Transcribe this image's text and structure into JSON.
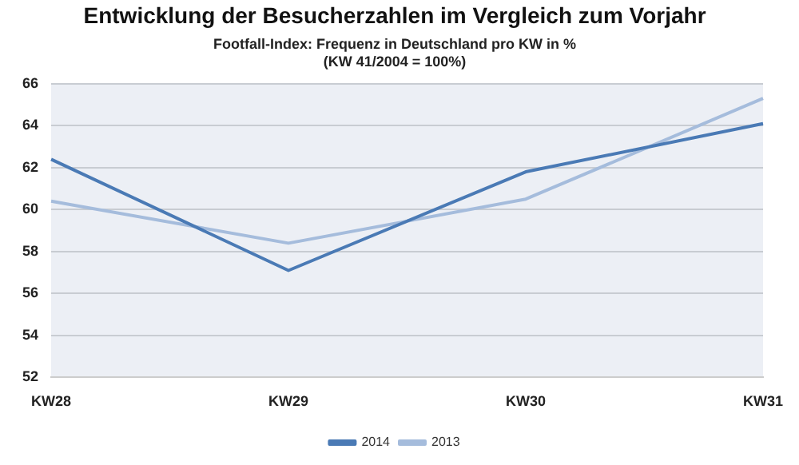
{
  "chart_data": {
    "type": "line",
    "title": "Entwicklung der Besucherzahlen im Vergleich zum Vorjahr",
    "subtitle": "Footfall-Index: Frequenz in Deutschland pro KW in %\n(KW 41/2004 = 100%)",
    "categories": [
      "KW28",
      "KW29",
      "KW30",
      "KW31"
    ],
    "series": [
      {
        "name": "2014",
        "color": "#4a7ab5",
        "values": [
          62.4,
          57.1,
          61.8,
          64.1
        ]
      },
      {
        "name": "2013",
        "color": "#a5bcdc",
        "values": [
          60.4,
          58.4,
          60.5,
          65.3
        ]
      }
    ],
    "ylim": [
      52,
      66
    ],
    "yticks": [
      52,
      54,
      56,
      58,
      60,
      62,
      64,
      66
    ],
    "grid": "y",
    "legend": "bottom",
    "marker": "none",
    "line_style": "solid"
  }
}
